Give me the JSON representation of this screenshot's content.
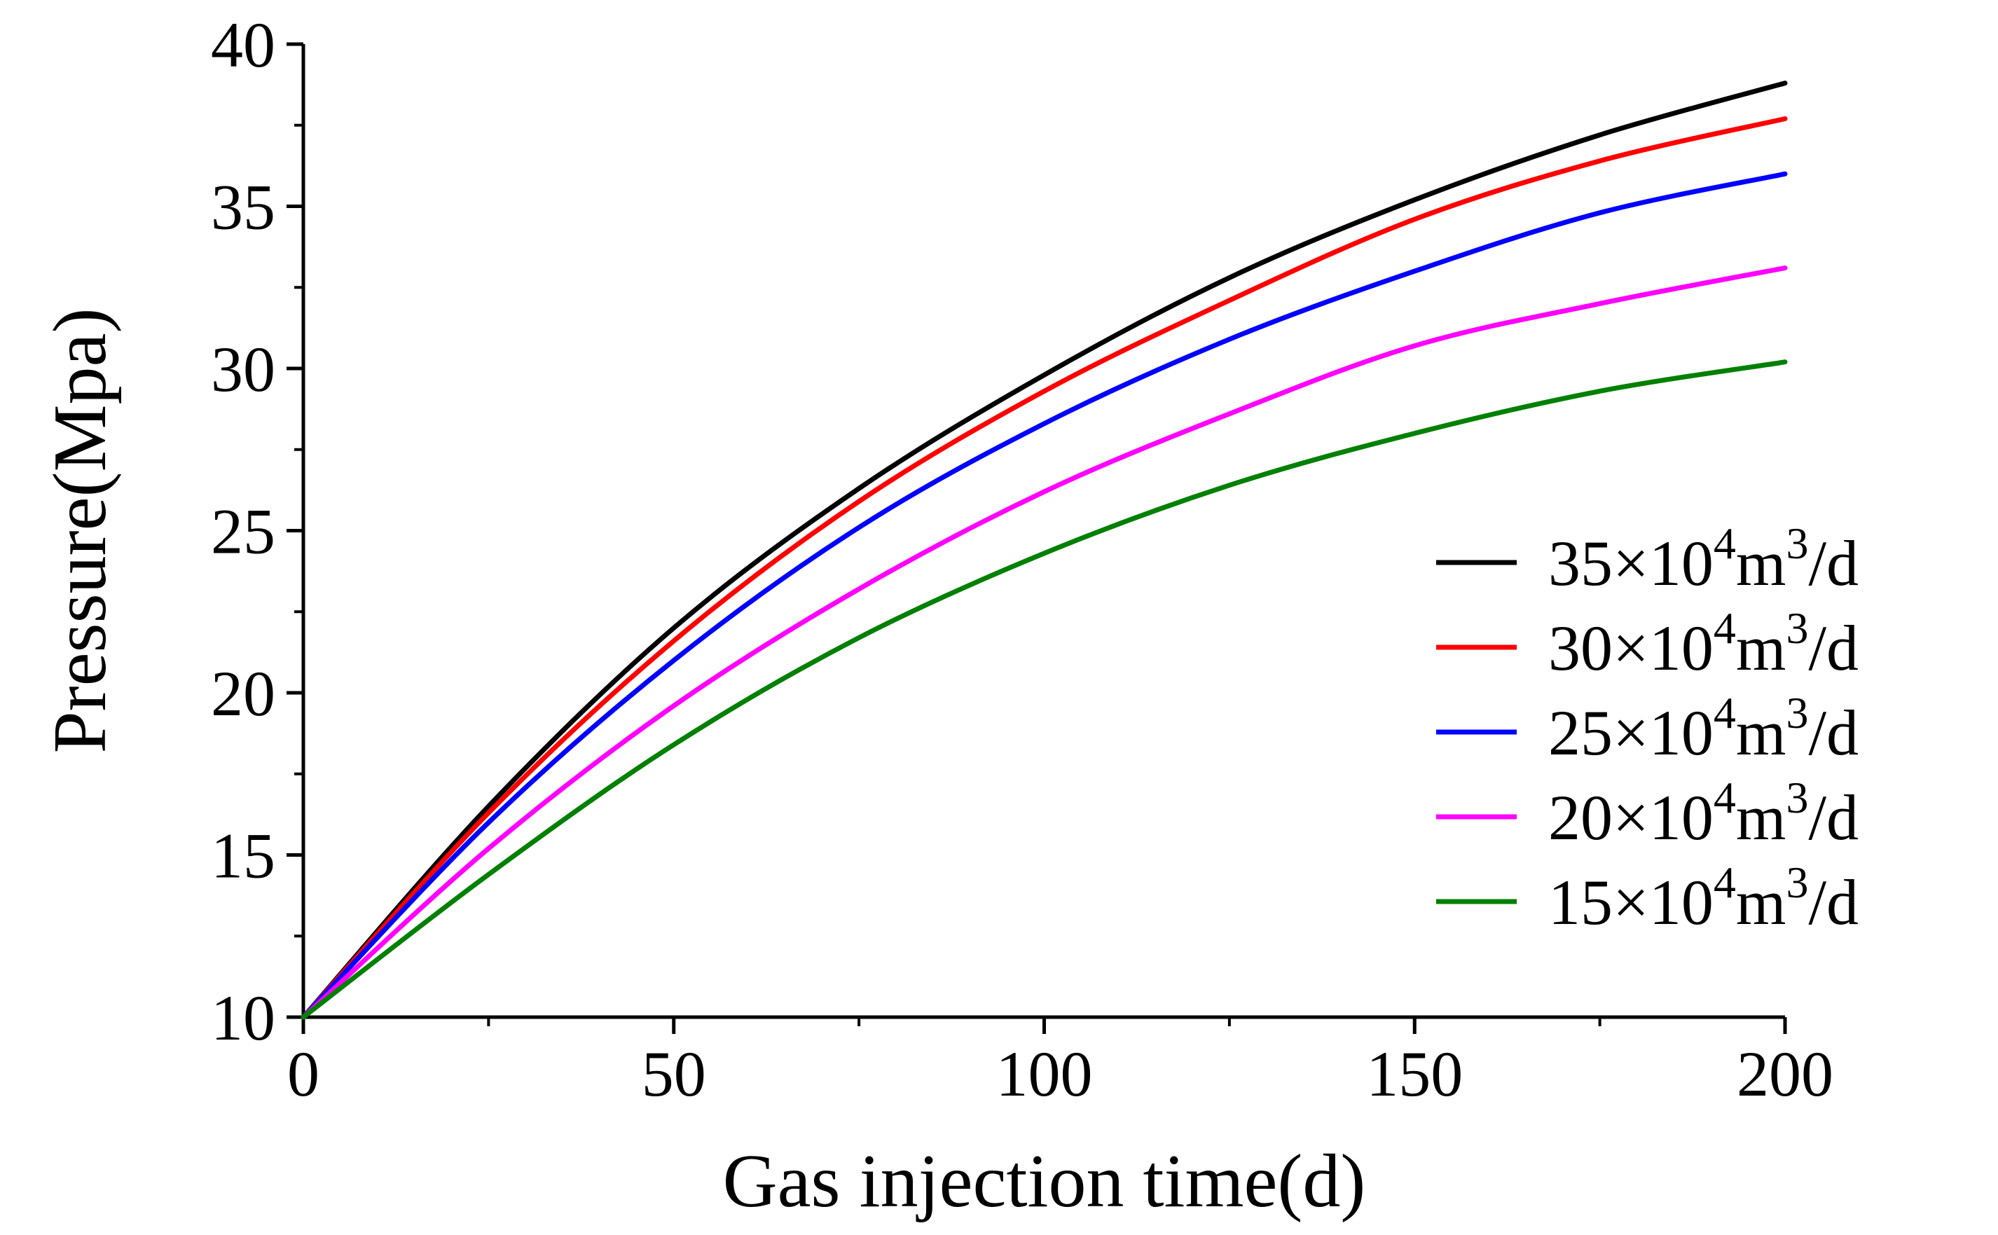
{
  "chart_data": {
    "type": "line",
    "title": "",
    "xlabel": "Gas injection time(d)",
    "ylabel": "Pressure(Mpa)",
    "xlim": [
      0,
      200
    ],
    "ylim": [
      10,
      40
    ],
    "xticks": [
      0,
      50,
      100,
      150,
      200
    ],
    "yticks": [
      10,
      15,
      20,
      25,
      30,
      35,
      40
    ],
    "xticks_labels": [
      "0",
      "50",
      "100",
      "150",
      "200"
    ],
    "yticks_labels": [
      "10",
      "15",
      "20",
      "25",
      "30",
      "35",
      "40"
    ],
    "grid": false,
    "legend_position": "right",
    "x": [
      0,
      25,
      50,
      75,
      100,
      125,
      150,
      175,
      200
    ],
    "series": [
      {
        "name": "35×10⁴m³/d",
        "label_base": "35×10",
        "color": "#000000",
        "values": [
          10,
          16.5,
          22.0,
          26.3,
          29.8,
          32.8,
          35.2,
          37.2,
          38.8
        ]
      },
      {
        "name": "30×10⁴m³/d",
        "label_base": "30×10",
        "color": "#ff0000",
        "values": [
          10,
          16.3,
          21.6,
          25.9,
          29.3,
          32.1,
          34.6,
          36.4,
          37.7
        ]
      },
      {
        "name": "25×10⁴m³/d",
        "label_base": "25×10",
        "color": "#0000ff",
        "values": [
          10,
          16.0,
          21.0,
          25.1,
          28.3,
          30.9,
          33.0,
          34.8,
          36.0
        ]
      },
      {
        "name": "20×10⁴m³/d",
        "label_base": "20×10",
        "color": "#ff00ff",
        "values": [
          10,
          15.2,
          19.6,
          23.2,
          26.2,
          28.6,
          30.7,
          32.0,
          33.1
        ]
      },
      {
        "name": "15×10⁴m³/d",
        "label_base": "15×10",
        "color": "#008000",
        "values": [
          10,
          14.4,
          18.4,
          21.7,
          24.3,
          26.4,
          28.0,
          29.3,
          30.2
        ]
      }
    ],
    "legend_superscript_1": "4",
    "legend_unit_m": "m",
    "legend_superscript_2": "3",
    "legend_unit_tail": "/d"
  }
}
